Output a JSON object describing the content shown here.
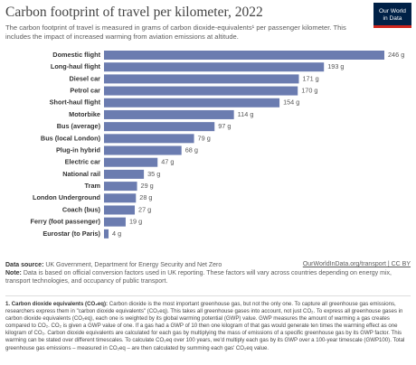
{
  "chart_data": {
    "type": "bar",
    "orientation": "horizontal",
    "title": "Carbon footprint of travel per kilometer, 2022",
    "subtitle": "The carbon footprint of travel is measured in grams of carbon dioxide-equivalents¹ per passenger kilometer. This includes the impact of increased warming from aviation emissions at altitude.",
    "categories": [
      "Domestic flight",
      "Long-haul flight",
      "Diesel car",
      "Petrol car",
      "Short-haul flight",
      "Motorbike",
      "Bus (average)",
      "Bus (local London)",
      "Plug-in hybrid",
      "Electric car",
      "National rail",
      "Tram",
      "London Underground",
      "Coach (bus)",
      "Ferry (foot passenger)",
      "Eurostar (to Paris)"
    ],
    "values": [
      246,
      193,
      171,
      170,
      154,
      114,
      97,
      79,
      68,
      47,
      35,
      29,
      28,
      27,
      19,
      4
    ],
    "value_labels": [
      "246 g",
      "193 g",
      "171 g",
      "170 g",
      "154 g",
      "114 g",
      "97 g",
      "79 g",
      "68 g",
      "47 g",
      "35 g",
      "29 g",
      "28 g",
      "27 g",
      "19 g",
      "4 g"
    ],
    "color": "#6b7cb0",
    "logo": [
      "Our World",
      "in Data"
    ],
    "source_label": "Data source:",
    "source": "UK Government, Department for Energy Security and Net Zero",
    "link": "OurWorldInData.org/transport | CC BY",
    "note_label": "Note:",
    "note": "Data is based on official conversion factors used in UK reporting. These factors will vary across countries depending on energy mix, transport technologies, and occupancy of public transport.",
    "footnote_label": "1. Carbon dioxide equivalents (CO₂eq):",
    "footnote": "Carbon dioxide is the most important greenhouse gas, but not the only one. To capture all greenhouse gas emissions, researchers express them in \"carbon dioxide equivalents\" (CO₂eq). This takes all greenhouse gases into account, not just CO₂. To express all greenhouse gases in carbon dioxide equivalents (CO₂eq), each one is weighted by its global warming potential (GWP) value. GWP measures the amount of warming a gas creates compared to CO₂. CO₂ is given a GWP value of one. If a gas had a GWP of 10 then one kilogram of that gas would generate ten times the warming effect as one kilogram of CO₂. Carbon dioxide equivalents are calculated for each gas by multiplying the mass of emissions of a specific greenhouse gas by its GWP factor. This warming can be stated over different timescales. To calculate CO₂eq over 100 years, we'd multiply each gas by its GWP over a 100-year timescale (GWP100). Total greenhouse gas emissions – measured in CO₂eq – are then calculated by summing each gas' CO₂eq value."
  }
}
